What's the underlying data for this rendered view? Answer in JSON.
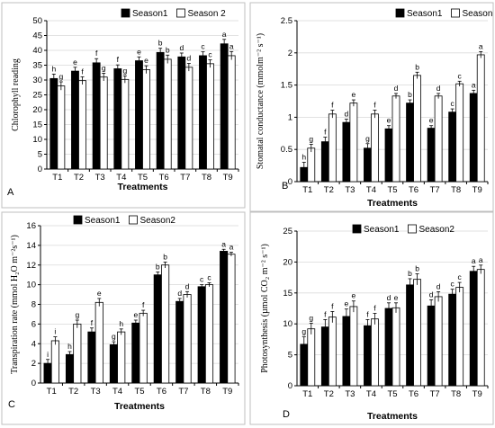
{
  "chart_data": [
    {
      "panel": "A",
      "type": "bar",
      "ylabel": "Chlorophyll reading",
      "xlabel": "Treatments",
      "categories": [
        "T1",
        "T2",
        "T3",
        "T4",
        "T5",
        "T6",
        "T7",
        "T8",
        "T9"
      ],
      "ylim": [
        0,
        50
      ],
      "yticks": [
        0,
        5,
        10,
        15,
        20,
        25,
        30,
        35,
        40,
        45,
        50
      ],
      "grid": true,
      "legend_position": "top-right",
      "series": [
        {
          "name": "Season1",
          "color": "#000000",
          "values": [
            30.5,
            33,
            35.8,
            33.8,
            36.5,
            39.3,
            37.8,
            38.2,
            42.2
          ],
          "errors": [
            1.5,
            1.3,
            1.4,
            1.3,
            1.3,
            1.4,
            1.3,
            1.3,
            1.5
          ],
          "letters": [
            "h",
            "e",
            "f",
            "f",
            "e",
            "b",
            "d",
            "c",
            "a"
          ]
        },
        {
          "name": "Season 2",
          "color": "#ffffff",
          "values": [
            28,
            29.8,
            31,
            30.2,
            33.5,
            37,
            34.3,
            35.5,
            38.2
          ],
          "errors": [
            1.4,
            1.3,
            1.3,
            1.2,
            1.3,
            1.4,
            1.3,
            1.3,
            1.4
          ],
          "letters": [
            "g",
            "f",
            "g",
            "g",
            "e",
            "b",
            "d",
            "c",
            "a"
          ]
        }
      ]
    },
    {
      "panel": "B",
      "type": "bar",
      "ylabel": "Stomatal conductance (mmolm⁻² s⁻¹)",
      "xlabel": "Treatments",
      "categories": [
        "T1",
        "T2",
        "T3",
        "T4",
        "T5",
        "T6",
        "T7",
        "T8",
        "T9"
      ],
      "ylim": [
        0,
        2.5
      ],
      "yticks": [
        0,
        0.5,
        1,
        1.5,
        2,
        2.5
      ],
      "grid": true,
      "legend_position": "top-right",
      "series": [
        {
          "name": "Season1",
          "color": "#000000",
          "values": [
            0.22,
            0.62,
            0.92,
            0.52,
            0.82,
            1.22,
            0.83,
            1.08,
            1.37
          ],
          "errors": [
            0.08,
            0.07,
            0.05,
            0.07,
            0.05,
            0.05,
            0.04,
            0.05,
            0.05
          ],
          "letters": [
            "h",
            "f",
            "d",
            "g",
            "e",
            "b",
            "e",
            "c",
            "a"
          ]
        },
        {
          "name": "Season 2",
          "color": "#ffffff",
          "values": [
            0.52,
            1.05,
            1.22,
            1.05,
            1.33,
            1.65,
            1.33,
            1.52,
            1.97
          ],
          "errors": [
            0.06,
            0.06,
            0.05,
            0.06,
            0.04,
            0.05,
            0.04,
            0.04,
            0.05
          ],
          "letters": [
            "g",
            "f",
            "e",
            "f",
            "d",
            "b",
            "d",
            "c",
            "a"
          ]
        }
      ]
    },
    {
      "panel": "C",
      "type": "bar",
      "ylabel": "Transpiration rate (mmol H₂O m⁻²s⁻¹)",
      "xlabel": "Treatments",
      "categories": [
        "T1",
        "T2",
        "T3",
        "T4",
        "T5",
        "T6",
        "T7",
        "T8",
        "T9"
      ],
      "ylim": [
        0,
        16
      ],
      "yticks": [
        0,
        2,
        4,
        6,
        8,
        10,
        12,
        14,
        16
      ],
      "grid": true,
      "legend_position": "top",
      "series": [
        {
          "name": "Season1",
          "color": "#000000",
          "values": [
            2,
            2.9,
            5.2,
            3.9,
            6.1,
            11,
            8.3,
            9.8,
            13.4
          ],
          "errors": [
            0.4,
            0.3,
            0.4,
            0.3,
            0.3,
            0.3,
            0.3,
            0.2,
            0.2
          ],
          "letters": [
            "i",
            "h",
            "f",
            "g",
            "e",
            "b",
            "d",
            "c",
            "a"
          ]
        },
        {
          "name": "Season2",
          "color": "#ffffff",
          "values": [
            4.3,
            6,
            8.2,
            5.2,
            7.1,
            12,
            9,
            10,
            13.1
          ],
          "errors": [
            0.4,
            0.4,
            0.4,
            0.3,
            0.3,
            0.3,
            0.3,
            0.2,
            0.2
          ],
          "letters": [
            "i",
            "g",
            "e",
            "h",
            "f",
            "b",
            "d",
            "c",
            "a"
          ]
        }
      ]
    },
    {
      "panel": "D",
      "type": "bar",
      "ylabel": "Photosynthesis (µmol CO₂ m⁻² s⁻¹)",
      "xlabel": "Treatments",
      "categories": [
        "T1",
        "T2",
        "T3",
        "T4",
        "T5",
        "T6",
        "T7",
        "T8",
        "T9"
      ],
      "ylim": [
        0,
        25
      ],
      "yticks": [
        0,
        5,
        10,
        15,
        20,
        25
      ],
      "grid": true,
      "legend_position": "top",
      "series": [
        {
          "name": "Season1",
          "color": "#000000",
          "values": [
            6.7,
            9.5,
            11.2,
            9.7,
            12.5,
            16.3,
            12.9,
            14.8,
            18.5
          ],
          "errors": [
            1.2,
            1.2,
            1.2,
            1,
            0.9,
            1,
            1,
            0.8,
            0.8
          ],
          "letters": [
            "g",
            "f",
            "e",
            "f",
            "d",
            "b",
            "d",
            "c",
            "a"
          ]
        },
        {
          "name": "Season2",
          "color": "#ffffff",
          "values": [
            9.2,
            11.1,
            12.8,
            10.8,
            12.6,
            17.2,
            14.4,
            15.9,
            18.8
          ],
          "errors": [
            0.9,
            0.9,
            0.9,
            0.9,
            0.8,
            0.9,
            0.8,
            0.8,
            0.7
          ],
          "letters": [
            "g",
            "f",
            "e",
            "f",
            "e",
            "b",
            "d",
            "c",
            "a"
          ]
        }
      ]
    }
  ]
}
